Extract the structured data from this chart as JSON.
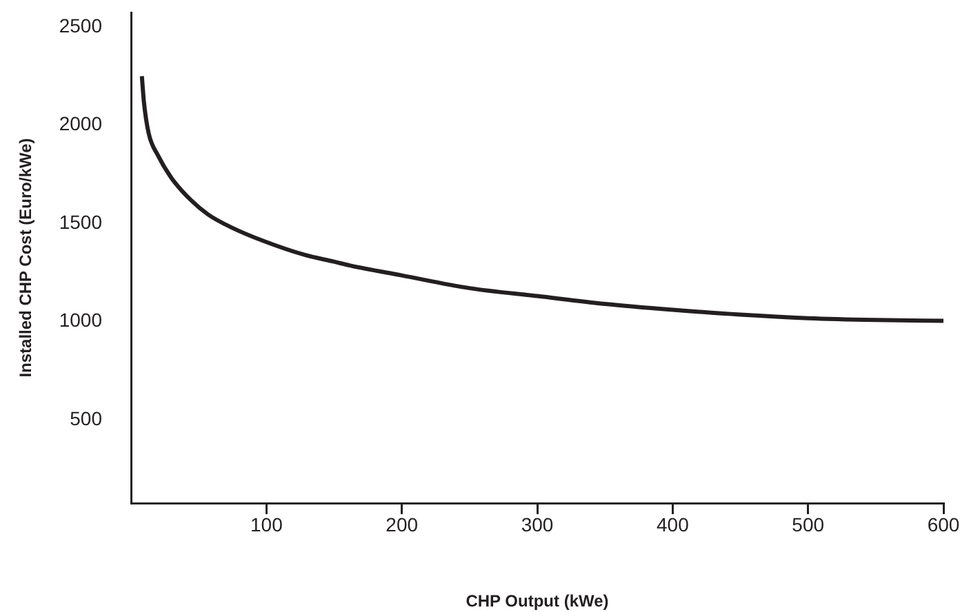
{
  "chart_data": {
    "type": "line",
    "xlabel": "CHP Output (kWe)",
    "ylabel": "Installed CHP Cost (Euro/kWe)",
    "x": [
      8,
      9.5,
      13,
      20,
      30,
      44,
      57,
      74,
      98,
      128,
      150,
      162,
      200,
      250,
      300,
      350,
      400,
      450,
      500,
      550,
      600
    ],
    "series": [
      {
        "color": "#231f20",
        "values": [
          2250,
          2120,
          1960,
          1845,
          1730,
          1620,
          1545,
          1480,
          1410,
          1340,
          1305,
          1285,
          1235,
          1170,
          1130,
          1090,
          1060,
          1035,
          1017,
          1008,
          1004
        ]
      }
    ],
    "xlim": [
      0,
      600
    ],
    "ylim": [
      75,
      2575
    ],
    "xticks": [
      100,
      200,
      300,
      400,
      500,
      600
    ],
    "yticks": [
      500,
      1000,
      1500,
      2000,
      2500
    ],
    "grid": false,
    "legend": false,
    "marker": "none",
    "line_style": "solid"
  }
}
